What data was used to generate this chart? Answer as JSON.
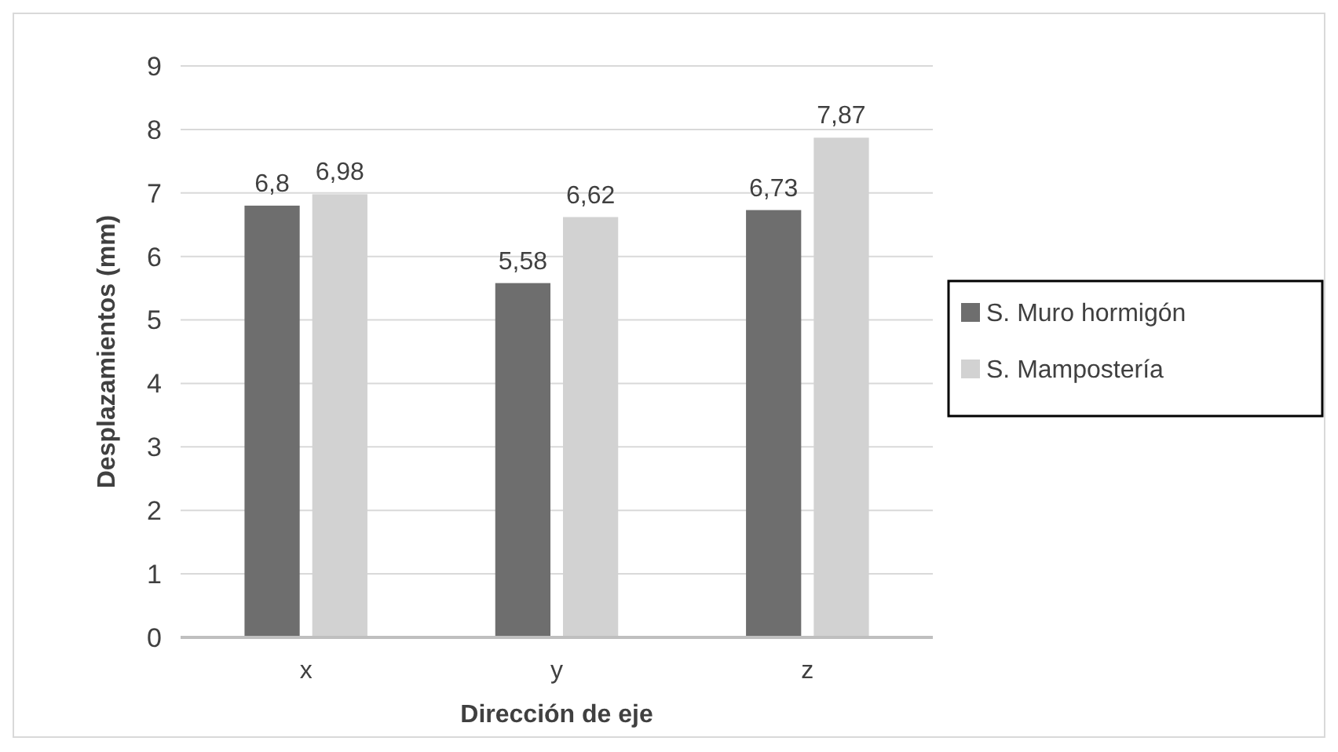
{
  "chart_data": {
    "type": "bar",
    "xlabel": "Dirección de eje",
    "ylabel": "Desplazamientos (mm)",
    "categories": [
      "x",
      "y",
      "z"
    ],
    "series": [
      {
        "name": "S. Muro hormigón",
        "color": "#6e6e6e",
        "values": [
          6.8,
          5.58,
          6.73
        ],
        "value_labels": [
          "6,8",
          "5,58",
          "6,73"
        ]
      },
      {
        "name": "S. Mampostería",
        "color": "#d2d2d2",
        "values": [
          6.98,
          6.62,
          7.87
        ],
        "value_labels": [
          "6,98",
          "6,62",
          "7,87"
        ]
      }
    ],
    "ylim": [
      0,
      9
    ],
    "yticks": [
      0,
      1,
      2,
      3,
      4,
      5,
      6,
      7,
      8,
      9
    ],
    "grid": "y",
    "legend": "right"
  }
}
